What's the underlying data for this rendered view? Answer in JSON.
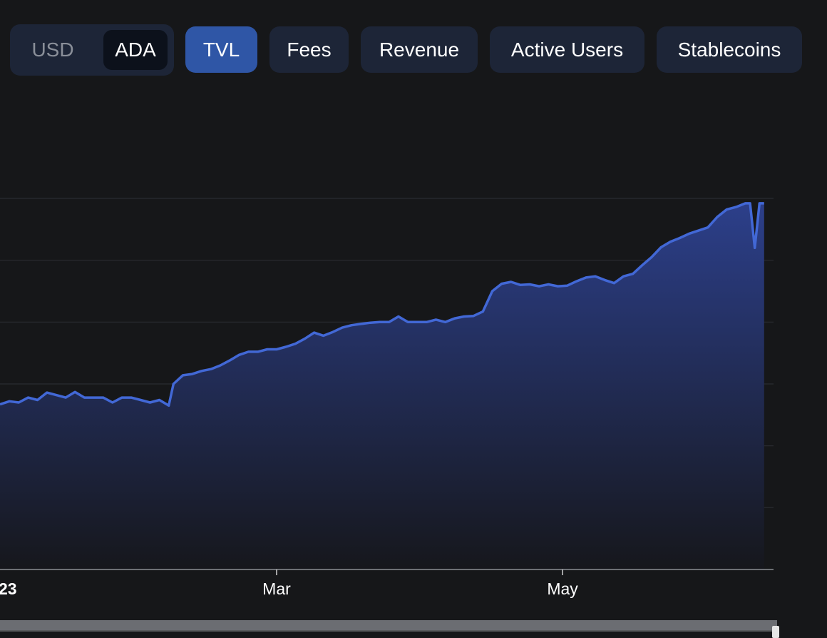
{
  "currency_toggle": {
    "options": [
      "USD",
      "ADA"
    ],
    "selected": "ADA"
  },
  "metric_tabs": [
    {
      "label": "TVL",
      "active": true
    },
    {
      "label": "Fees",
      "active": false
    },
    {
      "label": "Revenue",
      "active": false
    },
    {
      "label": "Active Users",
      "active": false
    },
    {
      "label": "Stablecoins",
      "active": false
    }
  ],
  "colors": {
    "background": "#161719",
    "line": "#4268d6",
    "area_top": "#2c3f8a",
    "area_bottom": "#16171c",
    "active_tab": "#2f56a6",
    "tab": "#1d2537"
  },
  "chart_data": {
    "type": "area",
    "title": "",
    "xlabel": "",
    "ylabel": "",
    "x_tick_labels": [
      "23",
      "Mar",
      "May"
    ],
    "x_range": [
      "2023-01-01",
      "2023-06-15"
    ],
    "y_range": [
      0,
      6
    ],
    "y_gridlines": [
      1,
      2,
      3,
      4,
      5,
      6
    ],
    "grid": true,
    "series": [
      {
        "points": [
          [
            "2023-01-01",
            2.67
          ],
          [
            "2023-01-03",
            2.72
          ],
          [
            "2023-01-05",
            2.7
          ],
          [
            "2023-01-07",
            2.78
          ],
          [
            "2023-01-09",
            2.74
          ],
          [
            "2023-01-11",
            2.86
          ],
          [
            "2023-01-13",
            2.82
          ],
          [
            "2023-01-15",
            2.78
          ],
          [
            "2023-01-17",
            2.87
          ],
          [
            "2023-01-19",
            2.78
          ],
          [
            "2023-01-21",
            2.78
          ],
          [
            "2023-01-23",
            2.78
          ],
          [
            "2023-01-25",
            2.7
          ],
          [
            "2023-01-27",
            2.78
          ],
          [
            "2023-01-29",
            2.78
          ],
          [
            "2023-01-31",
            2.74
          ],
          [
            "2023-02-02",
            2.7
          ],
          [
            "2023-02-04",
            2.74
          ],
          [
            "2023-02-06",
            2.65
          ],
          [
            "2023-02-07",
            3.0
          ],
          [
            "2023-02-09",
            3.14
          ],
          [
            "2023-02-11",
            3.16
          ],
          [
            "2023-02-13",
            3.21
          ],
          [
            "2023-02-15",
            3.24
          ],
          [
            "2023-02-17",
            3.3
          ],
          [
            "2023-02-19",
            3.38
          ],
          [
            "2023-02-21",
            3.47
          ],
          [
            "2023-02-23",
            3.52
          ],
          [
            "2023-02-25",
            3.52
          ],
          [
            "2023-02-27",
            3.56
          ],
          [
            "2023-03-01",
            3.56
          ],
          [
            "2023-03-03",
            3.6
          ],
          [
            "2023-03-05",
            3.65
          ],
          [
            "2023-03-07",
            3.73
          ],
          [
            "2023-03-09",
            3.83
          ],
          [
            "2023-03-11",
            3.78
          ],
          [
            "2023-03-13",
            3.84
          ],
          [
            "2023-03-15",
            3.91
          ],
          [
            "2023-03-17",
            3.95
          ],
          [
            "2023-03-19",
            3.97
          ],
          [
            "2023-03-21",
            3.99
          ],
          [
            "2023-03-23",
            4.0
          ],
          [
            "2023-03-25",
            4.0
          ],
          [
            "2023-03-27",
            4.09
          ],
          [
            "2023-03-29",
            4.0
          ],
          [
            "2023-03-31",
            4.0
          ],
          [
            "2023-04-02",
            4.0
          ],
          [
            "2023-04-04",
            4.04
          ],
          [
            "2023-04-06",
            4.0
          ],
          [
            "2023-04-08",
            4.06
          ],
          [
            "2023-04-10",
            4.09
          ],
          [
            "2023-04-12",
            4.1
          ],
          [
            "2023-04-14",
            4.17
          ],
          [
            "2023-04-16",
            4.5
          ],
          [
            "2023-04-18",
            4.62
          ],
          [
            "2023-04-20",
            4.65
          ],
          [
            "2023-04-22",
            4.6
          ],
          [
            "2023-04-24",
            4.61
          ],
          [
            "2023-04-26",
            4.58
          ],
          [
            "2023-04-28",
            4.61
          ],
          [
            "2023-04-30",
            4.58
          ],
          [
            "2023-05-02",
            4.59
          ],
          [
            "2023-05-04",
            4.66
          ],
          [
            "2023-05-06",
            4.72
          ],
          [
            "2023-05-08",
            4.74
          ],
          [
            "2023-05-10",
            4.68
          ],
          [
            "2023-05-12",
            4.63
          ],
          [
            "2023-05-14",
            4.74
          ],
          [
            "2023-05-16",
            4.78
          ],
          [
            "2023-05-18",
            4.92
          ],
          [
            "2023-05-20",
            5.05
          ],
          [
            "2023-05-22",
            5.21
          ],
          [
            "2023-05-24",
            5.3
          ],
          [
            "2023-05-26",
            5.36
          ],
          [
            "2023-05-28",
            5.43
          ],
          [
            "2023-05-30",
            5.48
          ],
          [
            "2023-06-01",
            5.53
          ],
          [
            "2023-06-03",
            5.7
          ],
          [
            "2023-06-05",
            5.82
          ],
          [
            "2023-06-07",
            5.86
          ],
          [
            "2023-06-09",
            5.92
          ],
          [
            "2023-06-10",
            5.92
          ],
          [
            "2023-06-11",
            5.2
          ],
          [
            "2023-06-12",
            5.92
          ],
          [
            "2023-06-13",
            5.92
          ]
        ]
      }
    ]
  }
}
